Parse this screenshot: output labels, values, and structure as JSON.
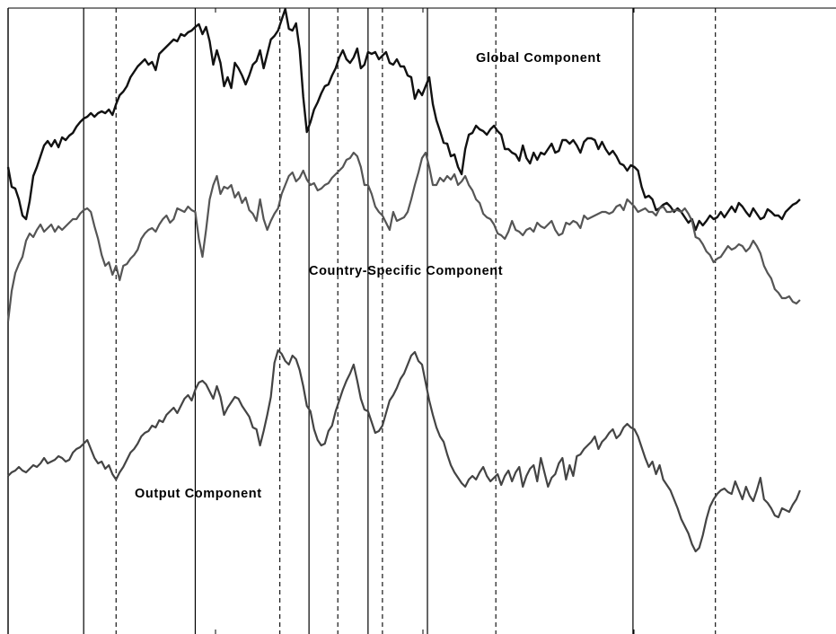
{
  "chart_data": {
    "type": "line",
    "title": "",
    "xlabel": "",
    "ylabel": "",
    "x": [
      0,
      1,
      2,
      3,
      4,
      5,
      6,
      7,
      8,
      9,
      10,
      11,
      12,
      13,
      14,
      15,
      16,
      17,
      18,
      19,
      20,
      21,
      22,
      23,
      24,
      25,
      26,
      27,
      28,
      29,
      30,
      31,
      32,
      33,
      34,
      35,
      36,
      37,
      38,
      39,
      40,
      41,
      42,
      43,
      44,
      45,
      46,
      47,
      48,
      49,
      50,
      51,
      52,
      53,
      54,
      55,
      56,
      57,
      58,
      59,
      60,
      61,
      62,
      63,
      64,
      65,
      66,
      67,
      68,
      69,
      70,
      71,
      72,
      73,
      74,
      75,
      76,
      77,
      78,
      79,
      80,
      81,
      82,
      83,
      84,
      85,
      86,
      87,
      88,
      89,
      90,
      91,
      92,
      93,
      94,
      95,
      96,
      97,
      98,
      99,
      100,
      101,
      102,
      103,
      104,
      105,
      106,
      107,
      108,
      109,
      110,
      111,
      112,
      113,
      114,
      115,
      116,
      117,
      118,
      119,
      120,
      121,
      122,
      123,
      124,
      125,
      126,
      127,
      128,
      129,
      130,
      131,
      132,
      133,
      134,
      135,
      136,
      137,
      138,
      139,
      140,
      141,
      142,
      143,
      144,
      145,
      146,
      147,
      148,
      149,
      150,
      151,
      152,
      153,
      154,
      155,
      156,
      157,
      158,
      159,
      160,
      161,
      162,
      163,
      164,
      165,
      166,
      167,
      168,
      169,
      170,
      171,
      172,
      173,
      174,
      175,
      176,
      177,
      178,
      179,
      180,
      181,
      182,
      183,
      184,
      185,
      186,
      187,
      188,
      189,
      190,
      191,
      192,
      193,
      194,
      195,
      196,
      197,
      198,
      199,
      200,
      201,
      202,
      203,
      204,
      205,
      206,
      207,
      208,
      209,
      210,
      211,
      212,
      213,
      214,
      215,
      216,
      217,
      218,
      219,
      220
    ],
    "xlim": [
      0,
      230
    ],
    "ylim": [
      0,
      706
    ],
    "grid": false,
    "vlines_solid": [
      21,
      52,
      83.6,
      100,
      116.5,
      173.6
    ],
    "vlines_dashed": [
      30,
      75.5,
      91.6,
      104,
      135.5,
      196.5
    ],
    "series": [
      {
        "name": "Global Component",
        "color": "#111111",
        "values": [
          520,
          498,
          496,
          484,
          466,
          462,
          482,
          510,
          520,
          532,
          544,
          549,
          543,
          550,
          542,
          553,
          550,
          555,
          558,
          565,
          570,
          574,
          576,
          580,
          576,
          580,
          582,
          580,
          584,
          578,
          590,
          600,
          604,
          610,
          620,
          626,
          632,
          636,
          640,
          634,
          637,
          628,
          646,
          650,
          654,
          658,
          662,
          660,
          668,
          666,
          670,
          672,
          676,
          679,
          668,
          676,
          660,
          634,
          650,
          636,
          610,
          620,
          608,
          636,
          630,
          622,
          612,
          622,
          634,
          638,
          650,
          630,
          646,
          662,
          666,
          672,
          684,
          696,
          674,
          672,
          680,
          651,
          598,
          559,
          570,
          584,
          592,
          602,
          610,
          612,
          622,
          630,
          642,
          650,
          640,
          636,
          642,
          652,
          630,
          634,
          648,
          646,
          648,
          640,
          644,
          648,
          636,
          634,
          640,
          632,
          632,
          622,
          620,
          596,
          606,
          600,
          610,
          620,
          590,
          572,
          560,
          547,
          546,
          532,
          534,
          520,
          512,
          540,
          556,
          558,
          566,
          562,
          560,
          556,
          562,
          566,
          560,
          556,
          540,
          540,
          536,
          534,
          527,
          544,
          530,
          524,
          536,
          528,
          536,
          534,
          540,
          546,
          536,
          538,
          550,
          550,
          546,
          550,
          544,
          536,
          548,
          552,
          552,
          550,
          540,
          548,
          540,
          534,
          538,
          532,
          524,
          522,
          516,
          522,
          520,
          516,
          498,
          486,
          488,
          484,
          472,
          474,
          478,
          480,
          476,
          470,
          474,
          470,
          464,
          458,
          462,
          450,
          460,
          455,
          460,
          466,
          462,
          464,
          470,
          464,
          470,
          476,
          470,
          480,
          476,
          470,
          465,
          474,
          468,
          462,
          464,
          473,
          470,
          466,
          466,
          462,
          470,
          474,
          478,
          480,
          484
        ]
      },
      {
        "name": "Country-Specific Component",
        "color": "#555555",
        "values": [
          348,
          382,
          402,
          412,
          420,
          438,
          446,
          442,
          450,
          456,
          448,
          452,
          456,
          448,
          454,
          450,
          454,
          458,
          462,
          462,
          468,
          472,
          474,
          470,
          454,
          440,
          422,
          410,
          414,
          400,
          410,
          394,
          410,
          412,
          418,
          422,
          428,
          440,
          446,
          450,
          452,
          448,
          456,
          462,
          466,
          458,
          462,
          474,
          472,
          470,
          476,
          472,
          470,
          440,
          420,
          450,
          484,
          500,
          510,
          490,
          498,
          496,
          500,
          486,
          492,
          480,
          486,
          472,
          468,
          460,
          484,
          462,
          450,
          460,
          468,
          474,
          490,
          500,
          510,
          514,
          504,
          508,
          516,
          506,
          500,
          502,
          494,
          496,
          500,
          502,
          508,
          512,
          516,
          520,
          528,
          530,
          536,
          532,
          520,
          500,
          500,
          490,
          476,
          470,
          466,
          458,
          450,
          470,
          460,
          462,
          464,
          470,
          484,
          500,
          514,
          530,
          536,
          520,
          500,
          500,
          508,
          504,
          510,
          506,
          512,
          500,
          504,
          510,
          500,
          494,
          484,
          480,
          468,
          464,
          462,
          456,
          446,
          444,
          440,
          448,
          460,
          450,
          448,
          444,
          450,
          452,
          448,
          458,
          454,
          452,
          456,
          460,
          450,
          444,
          446,
          458,
          456,
          460,
          458,
          452,
          466,
          462,
          464,
          466,
          468,
          470,
          470,
          468,
          470,
          476,
          478,
          472,
          484,
          480,
          476,
          470,
          472,
          474,
          470,
          470,
          466,
          474,
          476,
          470,
          470,
          472,
          472,
          470,
          474,
          468,
          460,
          442,
          440,
          434,
          426,
          422,
          414,
          418,
          420,
          426,
          432,
          428,
          430,
          434,
          432,
          426,
          430,
          438,
          432,
          424,
          410,
          402,
          396,
          384,
          380,
          374,
          374,
          376,
          370,
          368,
          372
        ]
      },
      {
        "name": "Output Component",
        "color": "#444444",
        "values": [
          176,
          180,
          182,
          186,
          182,
          180,
          184,
          188,
          186,
          190,
          196,
          190,
          192,
          194,
          198,
          196,
          192,
          194,
          202,
          206,
          208,
          212,
          216,
          206,
          196,
          190,
          192,
          184,
          188,
          178,
          172,
          180,
          186,
          194,
          202,
          206,
          212,
          220,
          224,
          226,
          232,
          230,
          238,
          236,
          244,
          248,
          252,
          246,
          254,
          262,
          266,
          260,
          272,
          280,
          282,
          278,
          270,
          262,
          276,
          264,
          244,
          252,
          258,
          264,
          262,
          254,
          248,
          242,
          230,
          228,
          210,
          226,
          244,
          264,
          302,
          316,
          312,
          304,
          300,
          310,
          306,
          294,
          276,
          254,
          248,
          228,
          216,
          210,
          212,
          226,
          232,
          248,
          260,
          272,
          282,
          290,
          300,
          282,
          262,
          250,
          248,
          236,
          224,
          226,
          232,
          246,
          260,
          266,
          274,
          284,
          290,
          300,
          310,
          314,
          304,
          300,
          280,
          260,
          244,
          230,
          220,
          214,
          200,
          188,
          180,
          174,
          168,
          164,
          172,
          176,
          172,
          180,
          186,
          176,
          170,
          174,
          178,
          166,
          176,
          182,
          170,
          180,
          186,
          164,
          176,
          184,
          188,
          170,
          196,
          180,
          164,
          174,
          178,
          190,
          196,
          172,
          188,
          176,
          198,
          200,
          206,
          210,
          214,
          220,
          206,
          214,
          218,
          224,
          228,
          218,
          222,
          230,
          234,
          230,
          228,
          220,
          208,
          196,
          186,
          192,
          178,
          188,
          172,
          166,
          160,
          150,
          140,
          128,
          120,
          112,
          100,
          92,
          96,
          110,
          128,
          142,
          150,
          156,
          160,
          162,
          158,
          156,
          170,
          160,
          150,
          164,
          154,
          148,
          160,
          174,
          150,
          146,
          140,
          132,
          130,
          140,
          138,
          136,
          144,
          150,
          160
        ]
      }
    ],
    "labels": {
      "global": "Global Component",
      "country": "Country-Specific Component",
      "output": "Output Component"
    }
  }
}
